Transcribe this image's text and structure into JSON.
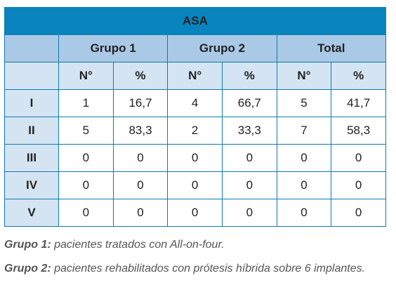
{
  "table": {
    "title": "ASA",
    "groups": [
      "Grupo 1",
      "Grupo 2",
      "Total"
    ],
    "subheaders": [
      "N°",
      "%",
      "N°",
      "%",
      "N°",
      "%"
    ],
    "rows": [
      {
        "label": "I",
        "values": [
          "1",
          "16,7",
          "4",
          "66,7",
          "5",
          "41,7"
        ]
      },
      {
        "label": "II",
        "values": [
          "5",
          "83,3",
          "2",
          "33,3",
          "7",
          "58,3"
        ]
      },
      {
        "label": "III",
        "values": [
          "0",
          "0",
          "0",
          "0",
          "0",
          "0"
        ]
      },
      {
        "label": "IV",
        "values": [
          "0",
          "0",
          "0",
          "0",
          "0",
          "0"
        ]
      },
      {
        "label": "V",
        "values": [
          "0",
          "0",
          "0",
          "0",
          "0",
          "0"
        ]
      }
    ]
  },
  "notes": [
    {
      "term": "Grupo 1:",
      "text": " pacientes tratados con All-on-four."
    },
    {
      "term": "Grupo 2:",
      "text": " pacientes rehabilitados con prótesis híbrida sobre 6 implantes."
    }
  ],
  "colors": {
    "title_bg": "#0a84be",
    "group_bg": "#a9c9e6",
    "sub_bg": "#d4e4f3",
    "border": "#0f7ab1"
  }
}
